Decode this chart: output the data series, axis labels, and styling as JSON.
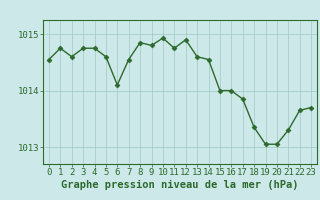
{
  "x": [
    0,
    1,
    2,
    3,
    4,
    5,
    6,
    7,
    8,
    9,
    10,
    11,
    12,
    13,
    14,
    15,
    16,
    17,
    18,
    19,
    20,
    21,
    22,
    23
  ],
  "y": [
    1014.55,
    1014.75,
    1014.6,
    1014.75,
    1014.75,
    1014.6,
    1014.1,
    1014.55,
    1014.85,
    1014.8,
    1014.93,
    1014.75,
    1014.9,
    1014.6,
    1014.55,
    1014.0,
    1014.0,
    1013.85,
    1013.35,
    1013.05,
    1013.05,
    1013.3,
    1013.65,
    1013.7
  ],
  "line_color": "#2d6a2d",
  "marker": "D",
  "marker_size": 2.5,
  "bg_color": "#cce8e8",
  "grid_color": "#a0c8c0",
  "axis_color": "#2d6a2d",
  "tick_color": "#2d6a2d",
  "label_color": "#2d6a2d",
  "xlabel": "Graphe pression niveau de la mer (hPa)",
  "ylim": [
    1012.7,
    1015.25
  ],
  "yticks": [
    1013,
    1014,
    1015
  ],
  "xticks": [
    0,
    1,
    2,
    3,
    4,
    5,
    6,
    7,
    8,
    9,
    10,
    11,
    12,
    13,
    14,
    15,
    16,
    17,
    18,
    19,
    20,
    21,
    22,
    23
  ],
  "xlabel_fontsize": 7.5,
  "tick_fontsize": 6.5,
  "line_width": 1.0
}
